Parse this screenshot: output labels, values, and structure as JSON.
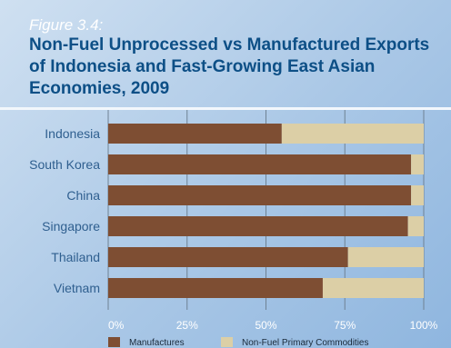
{
  "figure": {
    "label": "Figure 3.4:",
    "title": "Non-Fuel Unprocessed vs Manufactured Exports of Indonesia and Fast-Growing East Asian Economies, 2009"
  },
  "colors": {
    "manufactures": "#7e4e33",
    "primary": "#dccfa6",
    "gridline": "#6f8294"
  },
  "chart_data": {
    "type": "bar",
    "orientation": "horizontal",
    "stacked": true,
    "categories": [
      "Indonesia",
      "South Korea",
      "China",
      "Singapore",
      "Thailand",
      "Vietnam"
    ],
    "series": [
      {
        "name": "Manufactures",
        "values": [
          55,
          96,
          96,
          95,
          76,
          68
        ]
      },
      {
        "name": "Non-Fuel Primary Commodities",
        "values": [
          45,
          4,
          4,
          5,
          24,
          32
        ]
      }
    ],
    "x_ticks": [
      "0%",
      "25%",
      "50%",
      "75%",
      "100%"
    ],
    "xlim": [
      0,
      100
    ],
    "grid": true,
    "legend_position": "bottom"
  }
}
